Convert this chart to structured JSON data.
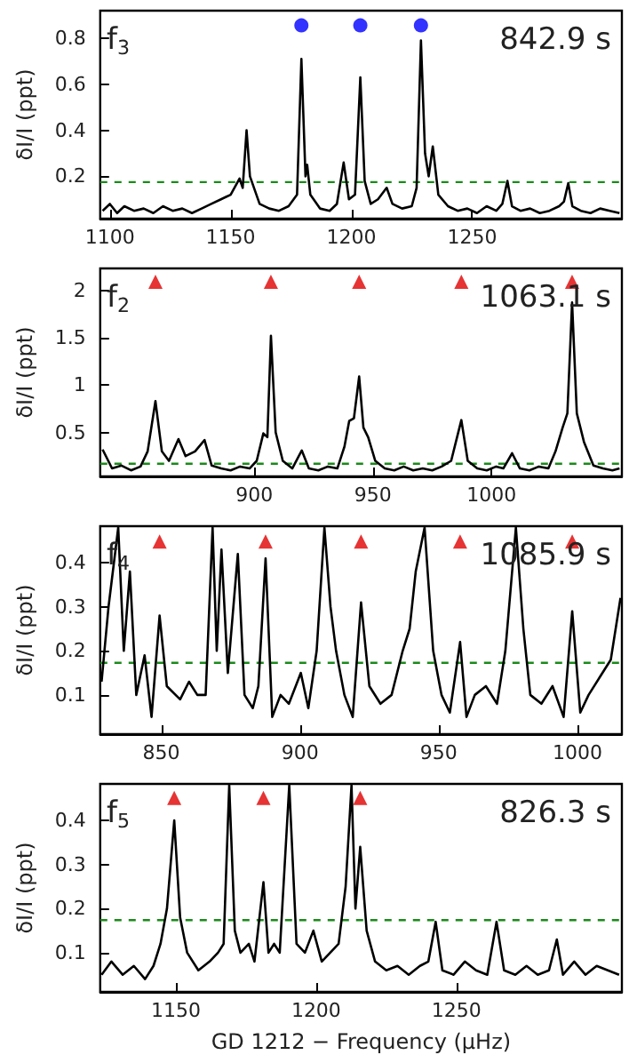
{
  "chart_data": [
    {
      "type": "line",
      "ylabel": "δI/I (ppt)",
      "xlim": [
        1096,
        1312
      ],
      "xticks": [
        1100,
        1150,
        1200,
        1250
      ],
      "ylim": [
        0.016,
        0.92
      ],
      "yticks": [
        0.2,
        0.4,
        0.6,
        0.8
      ],
      "annotations": [
        "f$_{3}$",
        "842.9 s"
      ],
      "ref_lines": [
        {
          "axis": "y",
          "value": 0.175,
          "color": "#1a8a1a",
          "line_style": "dashed"
        }
      ],
      "series": [
        {
          "color": "#000000",
          "marker": "none",
          "x": [
            1097,
            1100,
            1103,
            1106,
            1110,
            1114,
            1118,
            1122,
            1126,
            1130,
            1134,
            1138,
            1142,
            1146,
            1150,
            1153.7,
            1155,
            1156.6,
            1158,
            1162,
            1166,
            1170,
            1174,
            1177.5,
            1179.3,
            1181,
            1181.7,
            1183,
            1187,
            1191,
            1194,
            1196.8,
            1199,
            1201.5,
            1203.7,
            1205.5,
            1208,
            1211,
            1214.6,
            1217,
            1221,
            1225,
            1227,
            1228.8,
            1230.5,
            1232,
            1233.7,
            1236,
            1240,
            1244,
            1248,
            1252,
            1256,
            1260,
            1262.5,
            1264.6,
            1266.5,
            1270,
            1274,
            1278,
            1282,
            1286,
            1288,
            1289.8,
            1291.5,
            1295,
            1299,
            1303,
            1307,
            1311
          ],
          "values": [
            0.05,
            0.08,
            0.04,
            0.07,
            0.05,
            0.06,
            0.04,
            0.07,
            0.05,
            0.06,
            0.04,
            0.06,
            0.08,
            0.1,
            0.12,
            0.19,
            0.15,
            0.4,
            0.2,
            0.08,
            0.06,
            0.05,
            0.07,
            0.12,
            0.71,
            0.2,
            0.25,
            0.12,
            0.06,
            0.05,
            0.08,
            0.26,
            0.1,
            0.12,
            0.63,
            0.18,
            0.08,
            0.1,
            0.15,
            0.08,
            0.06,
            0.07,
            0.15,
            0.79,
            0.3,
            0.2,
            0.33,
            0.12,
            0.07,
            0.05,
            0.06,
            0.04,
            0.07,
            0.05,
            0.08,
            0.18,
            0.07,
            0.05,
            0.06,
            0.04,
            0.05,
            0.07,
            0.09,
            0.17,
            0.07,
            0.05,
            0.04,
            0.06,
            0.05,
            0.04
          ]
        },
        {
          "type": "scatter",
          "color": "#0000ff",
          "marker": "circle",
          "x": [
            1179.3,
            1203.7,
            1228.8
          ],
          "values": [
            0.856,
            0.856,
            0.856
          ]
        }
      ]
    },
    {
      "type": "line",
      "ylabel": "δI/I (ppt)",
      "xlim": [
        835,
        1055
      ],
      "xticks": [
        900,
        950,
        1000
      ],
      "ylim": [
        0.036,
        2.23
      ],
      "yticks": [
        0.5,
        1,
        1.5,
        2
      ],
      "annotations": [
        "f$_{2}$",
        "1063.1 s"
      ],
      "ref_lines": [
        {
          "axis": "y",
          "value": 0.17,
          "color": "#1a8a1a",
          "line_style": "dashed"
        }
      ],
      "series": [
        {
          "color": "#000000",
          "marker": "none",
          "x": [
            836,
            840,
            844,
            848,
            852,
            855,
            858.3,
            861,
            864,
            868,
            871,
            875,
            879,
            882,
            886,
            890,
            894,
            898,
            901,
            903.8,
            905.5,
            907,
            909,
            912,
            916,
            920,
            923,
            927,
            931,
            935,
            938,
            940,
            942,
            944.2,
            946,
            948,
            951,
            955,
            959,
            963,
            967,
            971,
            975,
            979,
            983,
            985,
            987.3,
            990,
            994,
            998,
            1002,
            1005,
            1008.7,
            1012,
            1016,
            1020,
            1024,
            1027,
            1030,
            1032,
            1034,
            1036,
            1039,
            1043,
            1047,
            1051,
            1054
          ],
          "values": [
            0.32,
            0.12,
            0.15,
            0.1,
            0.14,
            0.3,
            0.83,
            0.3,
            0.2,
            0.43,
            0.25,
            0.3,
            0.42,
            0.15,
            0.12,
            0.1,
            0.14,
            0.12,
            0.2,
            0.49,
            0.45,
            1.52,
            0.5,
            0.2,
            0.12,
            0.31,
            0.12,
            0.1,
            0.14,
            0.12,
            0.35,
            0.62,
            0.65,
            1.09,
            0.55,
            0.45,
            0.2,
            0.12,
            0.1,
            0.14,
            0.1,
            0.12,
            0.1,
            0.14,
            0.2,
            0.4,
            0.63,
            0.2,
            0.12,
            0.1,
            0.14,
            0.12,
            0.28,
            0.12,
            0.1,
            0.14,
            0.12,
            0.3,
            0.55,
            0.7,
            1.87,
            0.7,
            0.4,
            0.15,
            0.12,
            0.1,
            0.12
          ]
        },
        {
          "type": "scatter",
          "color": "#e00000",
          "marker": "triangle",
          "x": [
            858.3,
            907,
            944.2,
            987.3,
            1034
          ],
          "values": [
            2.09,
            2.09,
            2.09,
            2.09,
            2.09
          ]
        }
      ]
    },
    {
      "type": "line",
      "ylabel": "δI/I (ppt)",
      "xlim": [
        828,
        1016
      ],
      "xticks": [
        850,
        900,
        950,
        1000
      ],
      "ylim": [
        0.011,
        0.483
      ],
      "yticks": [
        0.1,
        0.2,
        0.3,
        0.4
      ],
      "annotations": [
        "f$_{4}$",
        "1085.9 s"
      ],
      "ref_lines": [
        {
          "axis": "y",
          "value": 0.173,
          "color": "#1a8a1a",
          "line_style": "dashed"
        }
      ],
      "series": [
        {
          "color": "#000000",
          "marker": "none",
          "x": [
            828.5,
            831,
            834.5,
            836.5,
            838.7,
            841,
            844,
            846.5,
            849.4,
            852,
            856.8,
            860,
            863,
            866,
            868.5,
            870,
            871.7,
            874,
            876,
            877.6,
            880,
            883,
            885,
            887.6,
            890,
            893,
            896,
            900.3,
            903,
            906,
            908.8,
            911,
            913,
            916,
            919,
            922,
            925,
            929,
            933,
            937,
            939.5,
            941.7,
            944.9,
            948,
            951,
            954,
            957.7,
            960,
            963,
            967,
            971,
            974,
            977.8,
            980.5,
            983,
            987,
            991,
            995,
            998.1,
            1001,
            1004,
            1008,
            1012,
            1015.5
          ],
          "values": [
            0.13,
            0.3,
            0.48,
            0.2,
            0.38,
            0.1,
            0.19,
            0.05,
            0.28,
            0.12,
            0.09,
            0.13,
            0.1,
            0.1,
            0.48,
            0.2,
            0.43,
            0.15,
            0.3,
            0.42,
            0.1,
            0.07,
            0.12,
            0.41,
            0.05,
            0.1,
            0.08,
            0.15,
            0.07,
            0.2,
            0.48,
            0.3,
            0.2,
            0.1,
            0.05,
            0.31,
            0.12,
            0.08,
            0.1,
            0.2,
            0.25,
            0.38,
            0.48,
            0.2,
            0.1,
            0.06,
            0.22,
            0.05,
            0.1,
            0.12,
            0.08,
            0.2,
            0.48,
            0.25,
            0.1,
            0.08,
            0.12,
            0.05,
            0.29,
            0.06,
            0.1,
            0.14,
            0.18,
            0.32
          ]
        },
        {
          "type": "scatter",
          "color": "#e00000",
          "marker": "triangle",
          "x": [
            849.4,
            887.6,
            922,
            957.7,
            998.1
          ],
          "values": [
            0.448,
            0.448,
            0.448,
            0.448,
            0.448
          ]
        }
      ]
    },
    {
      "type": "line",
      "ylabel": "δI/I (ppt)",
      "xlabel": "GD 1212 − Frequency (μHz)",
      "xlim": [
        1123,
        1309
      ],
      "xticks": [
        1150,
        1200,
        1250
      ],
      "ylim": [
        0.011,
        0.483
      ],
      "yticks": [
        0.1,
        0.2,
        0.3,
        0.4
      ],
      "annotations": [
        "f$_{5}$",
        "826.3 s"
      ],
      "ref_lines": [
        {
          "axis": "y",
          "value": 0.174,
          "color": "#1a8a1a",
          "line_style": "dashed"
        }
      ],
      "series": [
        {
          "color": "#000000",
          "marker": "none",
          "x": [
            1123.5,
            1127,
            1131,
            1135,
            1139,
            1142,
            1144.5,
            1146.8,
            1149.4,
            1151.5,
            1154,
            1158,
            1162,
            1165,
            1167,
            1169,
            1171,
            1173,
            1176,
            1178,
            1181.2,
            1183,
            1185,
            1187,
            1190.4,
            1193,
            1196,
            1199,
            1202,
            1205,
            1208,
            1210.5,
            1212.6,
            1214,
            1215.7,
            1218,
            1221,
            1225,
            1229,
            1233,
            1237,
            1240,
            1242.6,
            1245,
            1249,
            1253,
            1257,
            1261,
            1264.3,
            1267,
            1271,
            1275,
            1279,
            1283,
            1285.8,
            1288,
            1292,
            1296,
            1300,
            1304,
            1308
          ],
          "values": [
            0.05,
            0.08,
            0.05,
            0.07,
            0.04,
            0.07,
            0.12,
            0.2,
            0.4,
            0.18,
            0.1,
            0.06,
            0.08,
            0.1,
            0.12,
            0.48,
            0.15,
            0.1,
            0.12,
            0.08,
            0.26,
            0.1,
            0.12,
            0.1,
            0.48,
            0.12,
            0.1,
            0.15,
            0.08,
            0.1,
            0.12,
            0.25,
            0.48,
            0.2,
            0.34,
            0.15,
            0.08,
            0.06,
            0.07,
            0.05,
            0.07,
            0.08,
            0.17,
            0.06,
            0.05,
            0.08,
            0.06,
            0.05,
            0.17,
            0.06,
            0.05,
            0.07,
            0.05,
            0.06,
            0.13,
            0.05,
            0.08,
            0.05,
            0.07,
            0.06,
            0.05
          ]
        },
        {
          "type": "scatter",
          "color": "#e00000",
          "marker": "triangle",
          "x": [
            1149.4,
            1181.2,
            1215.7
          ],
          "values": [
            0.451,
            0.451,
            0.451
          ]
        }
      ]
    }
  ]
}
